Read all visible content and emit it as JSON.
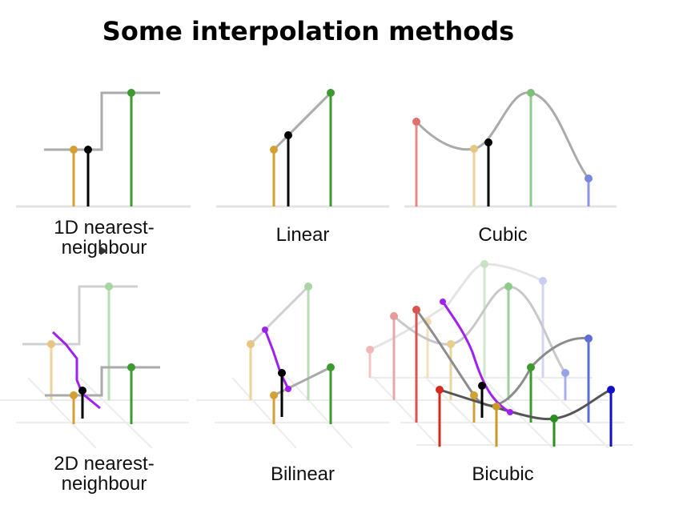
{
  "title": "Some interpolation methods",
  "panels": [
    {
      "id": "nn1d",
      "label": "1D nearest-\nneighbour"
    },
    {
      "id": "linear",
      "label": "Linear"
    },
    {
      "id": "cubic",
      "label": "Cubic"
    },
    {
      "id": "nn2d",
      "label": "2D nearest-\nneighbour"
    },
    {
      "id": "bilinear",
      "label": "Bilinear"
    },
    {
      "id": "bicubic",
      "label": "Bicubic"
    }
  ],
  "colors": {
    "gold": "#d4a034",
    "green": "#3c9a2f",
    "red": "#d9534f",
    "blue": "#5b6fd6",
    "purple": "#a020f0",
    "gray": "#aaaaaa",
    "black": "#000000"
  },
  "icons": [
    "mouse-cursor-icon"
  ]
}
